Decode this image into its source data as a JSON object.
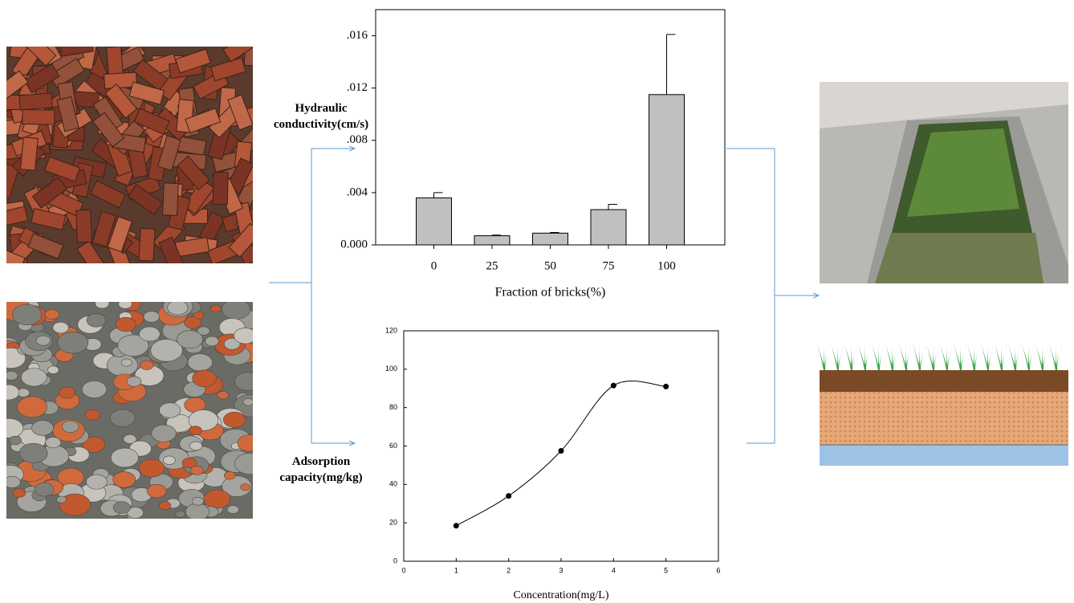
{
  "chart_data": [
    {
      "type": "bar",
      "y_label": "Hydraulic conductivity(cm/s)",
      "x_label": "Fraction of bricks(%)",
      "categories": [
        "0",
        "25",
        "50",
        "75",
        "100"
      ],
      "values": [
        0.0036,
        0.0007,
        0.0009,
        0.0027,
        0.0115
      ],
      "errors": [
        0.0004,
        5e-05,
        5e-05,
        0.0004,
        0.0046
      ],
      "color": "#c0c0c0",
      "ylim": [
        0,
        0.018
      ],
      "yticks": [
        {
          "value": 0,
          "label": "0.000"
        },
        {
          "value": 0.004,
          "label": ".004"
        },
        {
          "value": 0.008,
          "label": ".008"
        },
        {
          "value": 0.012,
          "label": ".012"
        },
        {
          "value": 0.016,
          "label": ".016"
        }
      ]
    },
    {
      "type": "line",
      "y_label": "Adsorption capacity(mg/kg)",
      "x_label": "Concentration(mg/L)",
      "x": [
        1,
        2,
        3,
        4,
        5
      ],
      "values": [
        18.5,
        34,
        57.5,
        91.5,
        91
      ],
      "color": "#000000",
      "xlim": [
        0,
        6
      ],
      "xticks": [
        0,
        1,
        2,
        3,
        4,
        5,
        6
      ],
      "ylim": [
        0,
        120
      ],
      "yticks": [
        0,
        20,
        40,
        60,
        80,
        100,
        120
      ]
    }
  ]
}
